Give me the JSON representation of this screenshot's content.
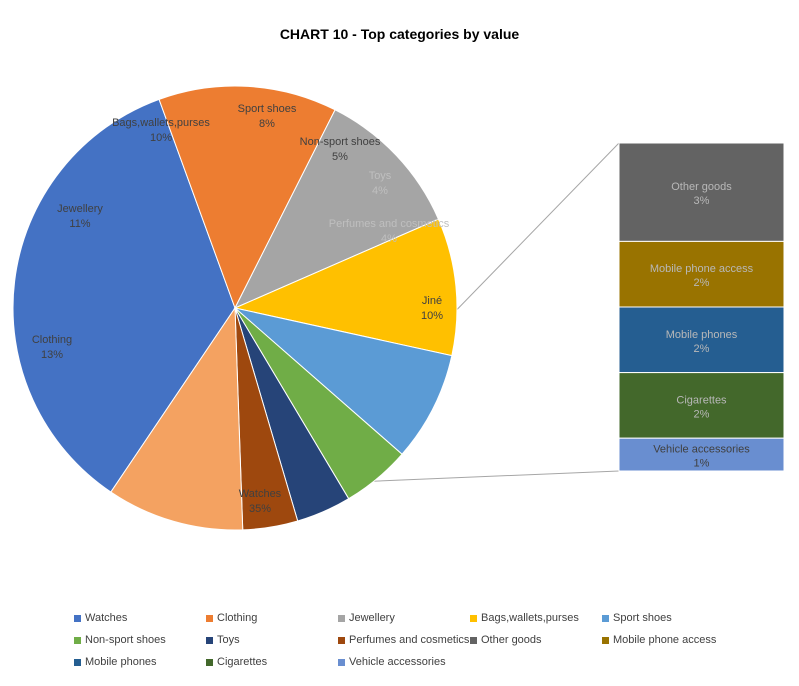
{
  "chart_data": {
    "type": "pie",
    "subtype": "bar-of-pie",
    "title": "CHART 10 - Top categories by value",
    "main_slices": [
      {
        "name": "Watches",
        "value": 35,
        "label": "35%",
        "color": "#4472C4"
      },
      {
        "name": "Clothing",
        "value": 13,
        "label": "13%",
        "color": "#ED7D31"
      },
      {
        "name": "Jewellery",
        "value": 11,
        "label": "11%",
        "color": "#A5A5A5"
      },
      {
        "name": "Bags,wallets,purses",
        "value": 10,
        "label": "10%",
        "color": "#FFC000"
      },
      {
        "name": "Sport shoes",
        "value": 8,
        "label": "8%",
        "color": "#5B9BD5"
      },
      {
        "name": "Non-sport shoes",
        "value": 5,
        "label": "5%",
        "color": "#70AD47"
      },
      {
        "name": "Toys",
        "value": 4,
        "label": "4%",
        "color": "#264478"
      },
      {
        "name": "Perfumes and cosmetics",
        "value": 4,
        "label": "4%",
        "color": "#9E480E"
      },
      {
        "name": "Jiné",
        "value": 10,
        "label": "10%",
        "color": "#F4A261"
      }
    ],
    "bar_items": [
      {
        "name": "Other goods",
        "value": 3,
        "label": "3%",
        "color": "#636363"
      },
      {
        "name": "Mobile phone access",
        "value": 2,
        "label": "2%",
        "color": "#997300"
      },
      {
        "name": "Mobile phones",
        "value": 2,
        "label": "2%",
        "color": "#255E91"
      },
      {
        "name": "Cigarettes",
        "value": 2,
        "label": "2%",
        "color": "#43682B"
      },
      {
        "name": "Vehicle accessories",
        "value": 1,
        "label": "1%",
        "color": "#698ED0"
      }
    ],
    "legend_position": "bottom",
    "legend": [
      {
        "name": "Watches",
        "color": "#4472C4"
      },
      {
        "name": "Clothing",
        "color": "#ED7D31"
      },
      {
        "name": "Jewellery",
        "color": "#A5A5A5"
      },
      {
        "name": "Bags,wallets,purses",
        "color": "#FFC000"
      },
      {
        "name": "Sport shoes",
        "color": "#5B9BD5"
      },
      {
        "name": "Non-sport shoes",
        "color": "#70AD47"
      },
      {
        "name": "Toys",
        "color": "#264478"
      },
      {
        "name": "Perfumes and cosmetics",
        "color": "#9E480E"
      },
      {
        "name": "Other goods",
        "color": "#636363"
      },
      {
        "name": "Mobile phone access",
        "color": "#997300"
      },
      {
        "name": "Mobile phones",
        "color": "#255E91"
      },
      {
        "name": "Cigarettes",
        "color": "#43682B"
      },
      {
        "name": "Vehicle accessories",
        "color": "#698ED0"
      }
    ]
  }
}
